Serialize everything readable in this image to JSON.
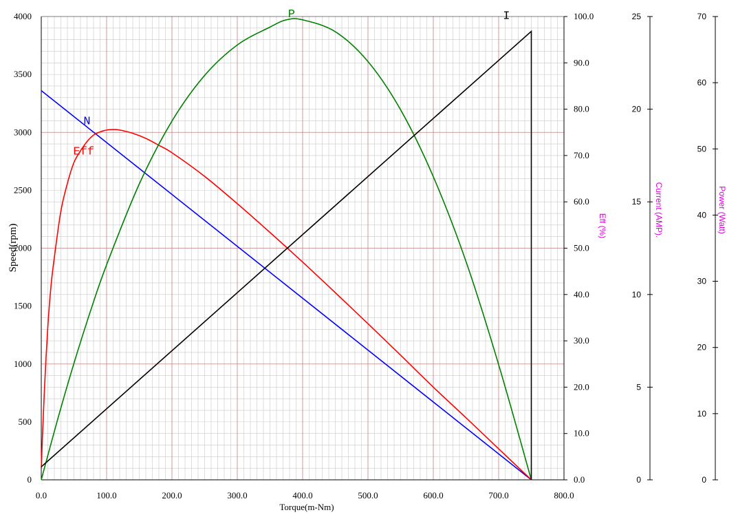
{
  "chart_data": {
    "type": "line",
    "x_axis": {
      "title": "Torque(m-Nm)",
      "range": [
        0,
        800
      ],
      "ticks": [
        "0.0",
        "100.0",
        "200.0",
        "300.0",
        "400.0",
        "500.0",
        "600.0",
        "700.0",
        "800.0"
      ]
    },
    "y_axis_left": {
      "title": "Speed(rpm)",
      "range": [
        0,
        4000
      ],
      "ticks": [
        "0",
        "500",
        "1000",
        "1500",
        "2000",
        "2500",
        "3000",
        "3500",
        "4000"
      ]
    },
    "y_axis_eff": {
      "title": "Eff (%)",
      "range": [
        0,
        100
      ],
      "ticks": [
        "0.0",
        "10.0",
        "20.0",
        "30.0",
        "40.0",
        "50.0",
        "60.0",
        "70.0",
        "80.0",
        "90.0",
        "100.0"
      ]
    },
    "y_axis_current": {
      "title": "Current (AMP).",
      "range": [
        0,
        25
      ],
      "ticks": [
        "0",
        "5",
        "10",
        "15",
        "20",
        "25"
      ]
    },
    "y_axis_power": {
      "title": "Power (Watt)",
      "range": [
        0,
        70
      ],
      "ticks": [
        "0",
        "10",
        "20",
        "30",
        "40",
        "50",
        "60",
        "70"
      ]
    },
    "grid": true,
    "series": [
      {
        "name": "N",
        "axis": "speed",
        "color": "#0000ff",
        "x": [
          0,
          750
        ],
        "y": [
          3360,
          0
        ]
      },
      {
        "name": "Eff",
        "axis": "eff",
        "color": "#ff0000",
        "x": [
          0,
          2,
          5,
          10,
          15,
          20,
          30,
          40,
          50,
          60,
          70,
          80,
          90,
          100,
          110,
          120,
          140,
          160,
          180,
          200,
          250,
          300,
          350,
          400,
          450,
          500,
          550,
          600,
          650,
          700,
          750
        ],
        "y": [
          2.5,
          10,
          20,
          33,
          42,
          48,
          58,
          64,
          68.5,
          71,
          73,
          74.4,
          75.1,
          75.5,
          75.6,
          75.5,
          74.8,
          73.7,
          72.2,
          70.6,
          65.5,
          59.6,
          53.4,
          47,
          40.4,
          33.7,
          26.9,
          20,
          13.4,
          6.7,
          0
        ]
      },
      {
        "name": "P",
        "axis": "power",
        "color": "#008000",
        "x": [
          0,
          25,
          50,
          75,
          100,
          150,
          200,
          250,
          300,
          350,
          375,
          400,
          450,
          500,
          550,
          600,
          650,
          700,
          750
        ],
        "y": [
          0,
          9.1,
          17.6,
          25.4,
          32.5,
          44.7,
          54.2,
          61.1,
          65.7,
          68.4,
          69.5,
          69.5,
          67.7,
          63.2,
          55.9,
          45.8,
          33,
          17.4,
          0
        ]
      },
      {
        "name": "I",
        "axis": "current",
        "color": "#000000",
        "x": [
          0,
          750,
          750
        ],
        "y": [
          0.7,
          24.2,
          0
        ]
      }
    ]
  }
}
